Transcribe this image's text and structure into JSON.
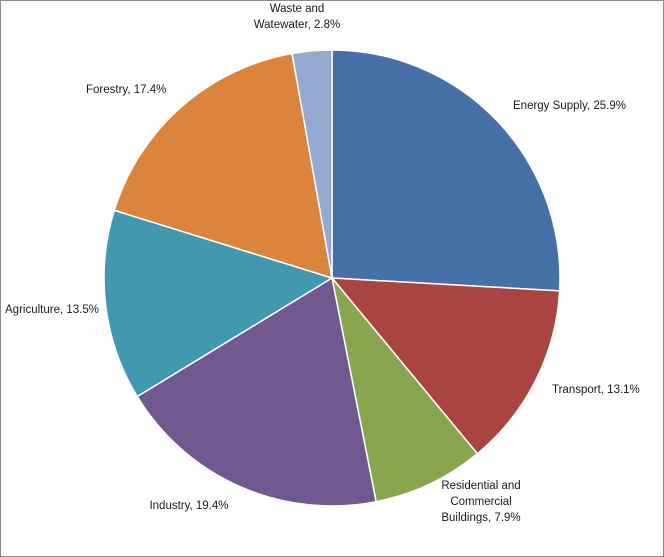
{
  "chart_data": {
    "type": "pie",
    "title": "",
    "legend": "none",
    "start_angle_deg": 0,
    "direction": "clockwise",
    "slices": [
      {
        "label": "Energy Supply",
        "value": 25.9,
        "color": "#4571A8",
        "data_label": [
          "Energy Supply, 25.9%"
        ]
      },
      {
        "label": "Transport",
        "value": 13.1,
        "color": "#A94442",
        "data_label": [
          "Transport, 13.1%"
        ]
      },
      {
        "label": "Residential and Commercial Buildings",
        "value": 7.9,
        "color": "#89A54E",
        "data_label": [
          "Residential and",
          "Commercial",
          "Buildings, 7.9%"
        ]
      },
      {
        "label": "Industry",
        "value": 19.4,
        "color": "#71588F",
        "data_label": [
          "Industry, 19.4%"
        ]
      },
      {
        "label": "Agriculture",
        "value": 13.5,
        "color": "#4198AF",
        "data_label": [
          "Agriculture, 13.5%"
        ]
      },
      {
        "label": "Forestry",
        "value": 17.4,
        "color": "#DB843D",
        "data_label": [
          "Forestry, 17.4%"
        ]
      },
      {
        "label": "Waste and Wastewater",
        "value": 2.8,
        "color": "#93A9CF",
        "data_label": [
          "Waste and",
          "Watewater, 2.8%"
        ]
      }
    ]
  }
}
